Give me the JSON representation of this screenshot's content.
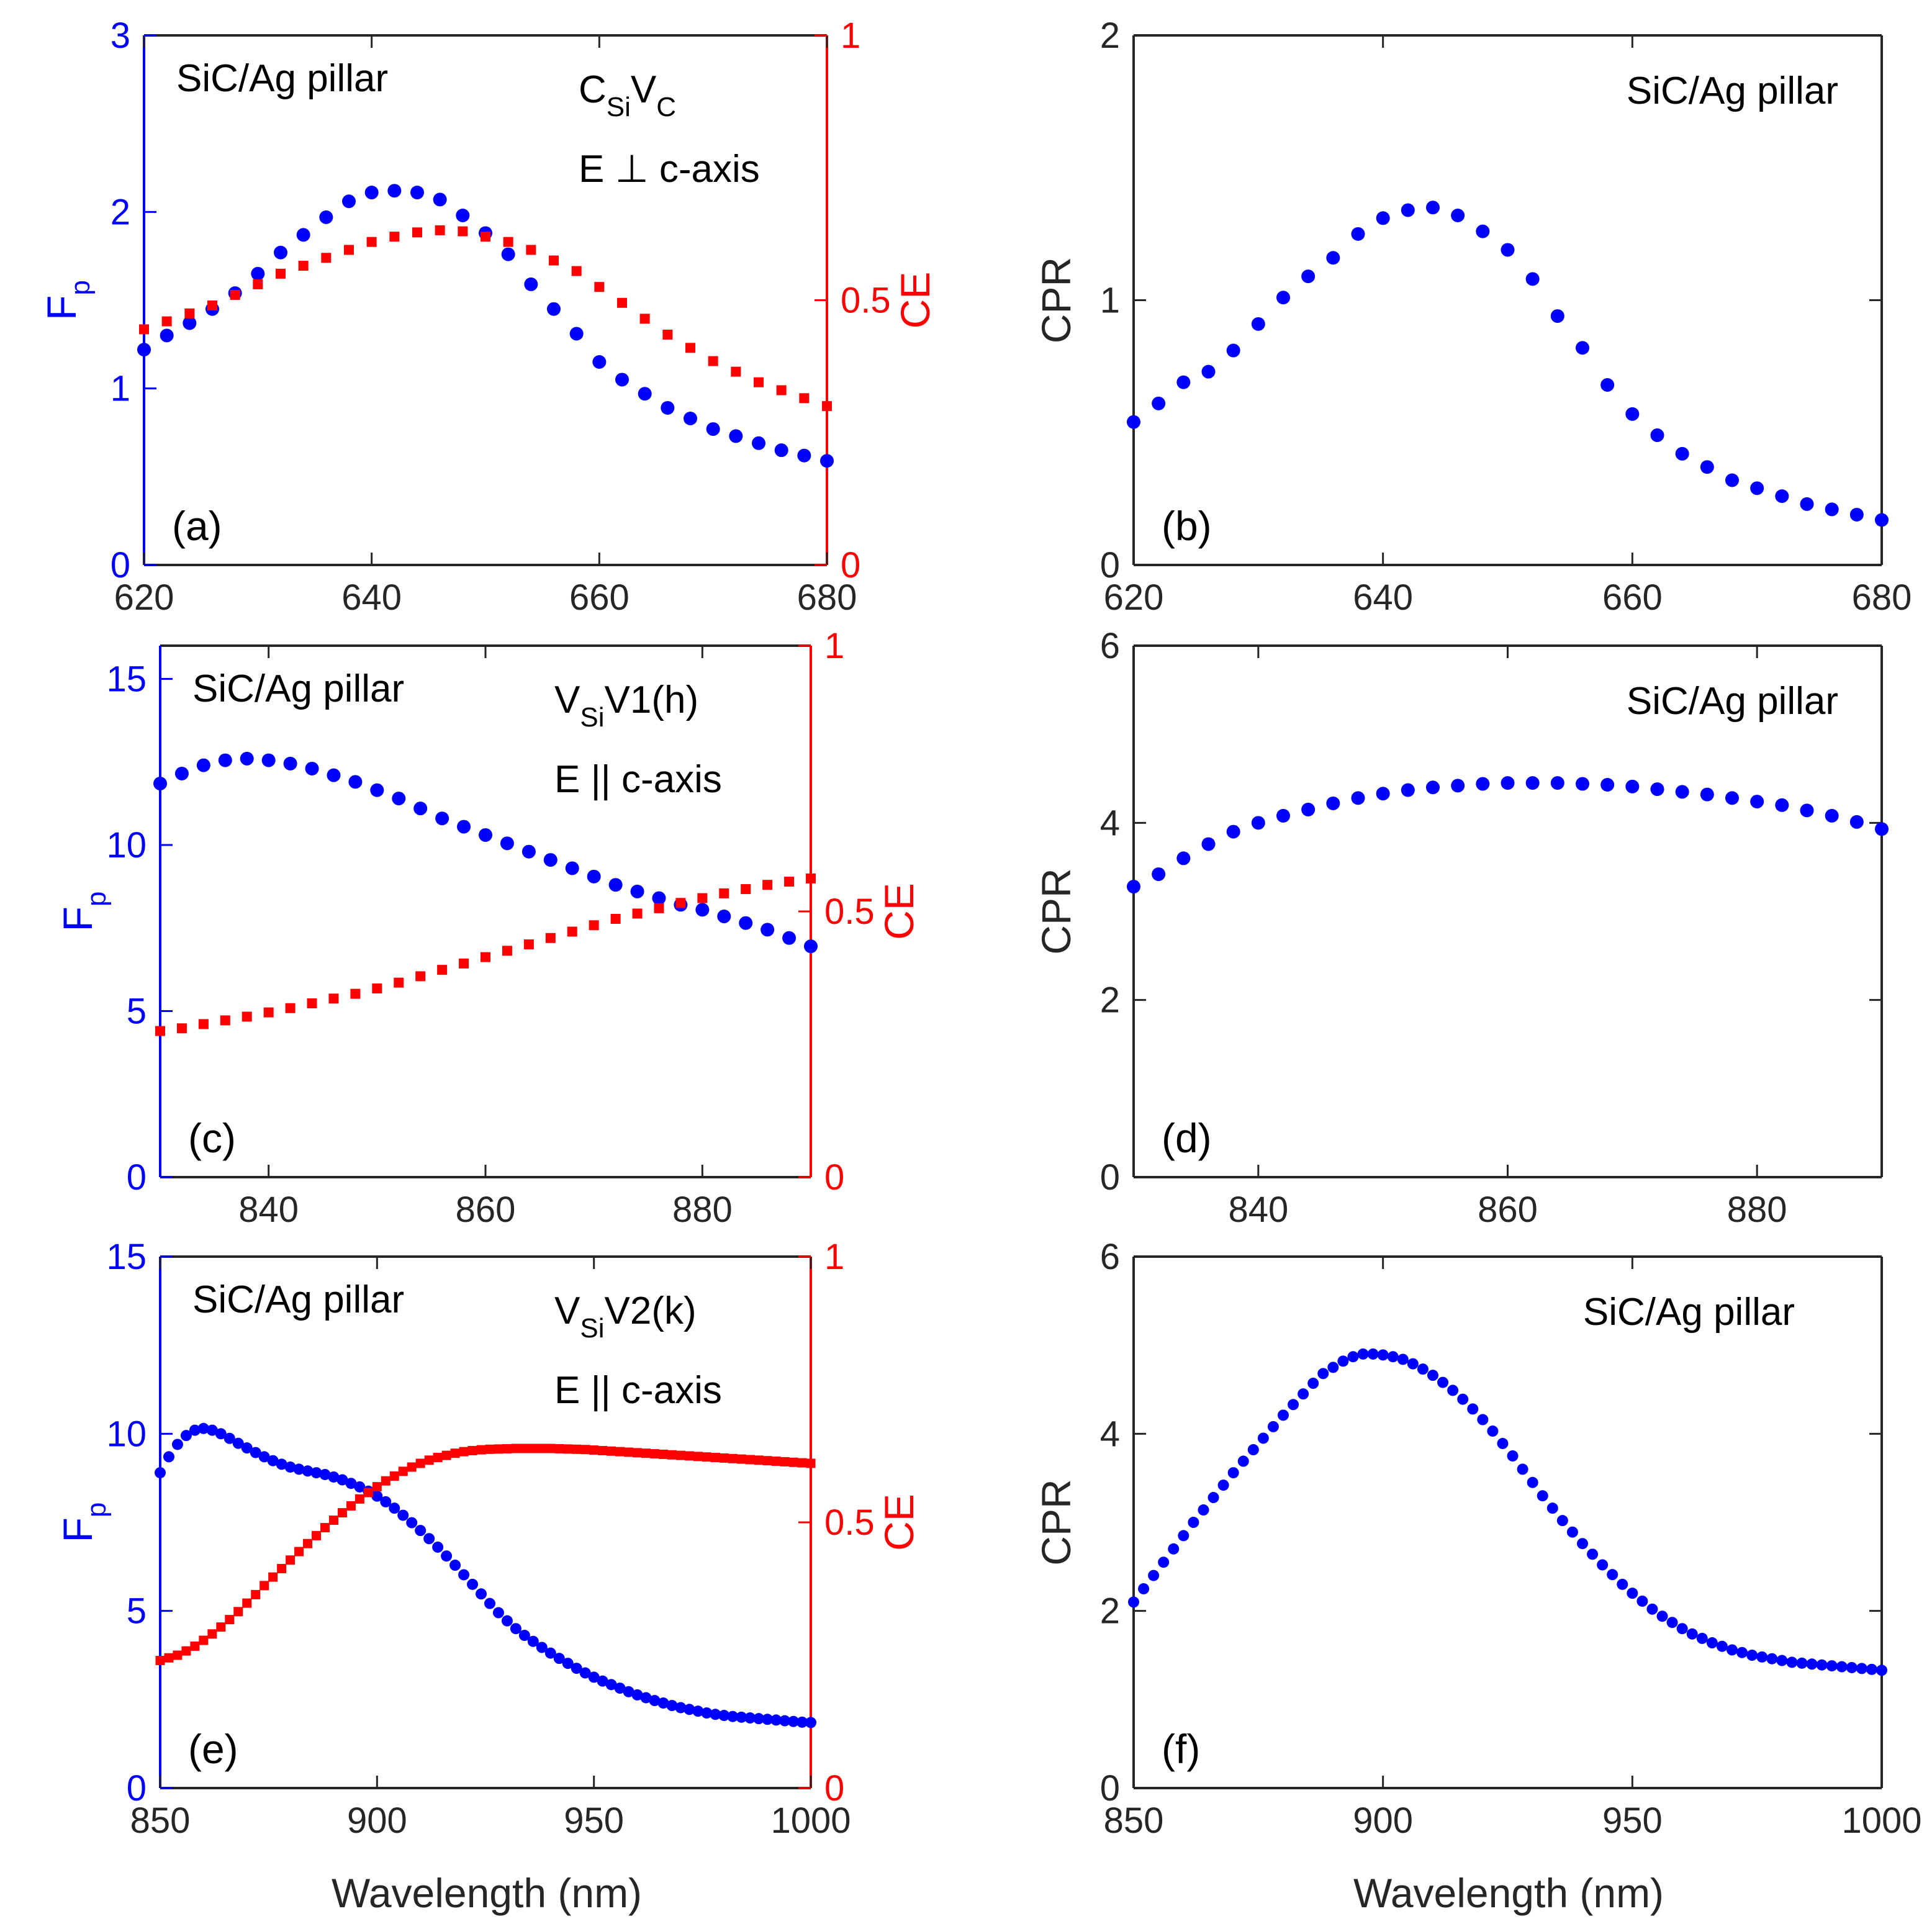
{
  "figure": {
    "xlabel": "Wavelength (nm)",
    "colors": {
      "fp": "#0000FF",
      "ce": "#FF0000",
      "cpr": "#0000FF",
      "axis": "#262626",
      "text": "#000000"
    },
    "shared_labels": {
      "fp": "F",
      "fp_sub": "p",
      "ce": "CE",
      "cpr": "CPR",
      "structure": "SiC/Ag pillar"
    }
  },
  "chart_data": [
    {
      "id": "a",
      "type": "scatter",
      "panel_label": "(a)",
      "xlim": [
        620,
        680
      ],
      "xticks": [
        620,
        640,
        660,
        680
      ],
      "ylim_left": [
        0,
        3
      ],
      "yticks_left": [
        0,
        1,
        2,
        3
      ],
      "ylim_right": [
        0,
        1
      ],
      "yticks_right": [
        0,
        0.5,
        1
      ],
      "ylabel_left": "Fp",
      "ylabel_right": "CE",
      "legend_text": "SiC/Ag pillar",
      "defect": {
        "main1": "C",
        "sub1": "Si",
        "main2": "V",
        "sub2": "C"
      },
      "polarization": "E ⊥ c-axis",
      "series": [
        {
          "name": "Fp",
          "axis": "left",
          "marker": "circle",
          "x": [
            620,
            622,
            624,
            626,
            628,
            630,
            632,
            634,
            636,
            638,
            640,
            642,
            644,
            646,
            648,
            650,
            652,
            654,
            656,
            658,
            660,
            662,
            664,
            666,
            668,
            670,
            672,
            674,
            676,
            678,
            680
          ],
          "y": [
            1.22,
            1.3,
            1.37,
            1.45,
            1.54,
            1.65,
            1.77,
            1.87,
            1.97,
            2.06,
            2.11,
            2.12,
            2.11,
            2.07,
            1.98,
            1.88,
            1.76,
            1.59,
            1.45,
            1.31,
            1.15,
            1.05,
            0.97,
            0.89,
            0.83,
            0.77,
            0.73,
            0.69,
            0.65,
            0.62,
            0.59
          ]
        },
        {
          "name": "CE",
          "axis": "right",
          "marker": "square",
          "x": [
            620,
            622,
            624,
            626,
            628,
            630,
            632,
            634,
            636,
            638,
            640,
            642,
            644,
            646,
            648,
            650,
            652,
            654,
            656,
            658,
            660,
            662,
            664,
            666,
            668,
            670,
            672,
            674,
            676,
            678,
            680
          ],
          "y": [
            0.445,
            0.46,
            0.475,
            0.49,
            0.51,
            0.53,
            0.55,
            0.565,
            0.58,
            0.595,
            0.61,
            0.62,
            0.628,
            0.632,
            0.63,
            0.62,
            0.61,
            0.595,
            0.575,
            0.555,
            0.525,
            0.495,
            0.465,
            0.435,
            0.41,
            0.385,
            0.365,
            0.345,
            0.33,
            0.315,
            0.3
          ]
        }
      ]
    },
    {
      "id": "b",
      "type": "scatter",
      "panel_label": "(b)",
      "xlim": [
        620,
        680
      ],
      "xticks": [
        620,
        640,
        660,
        680
      ],
      "ylim": [
        0,
        2
      ],
      "yticks": [
        0,
        1,
        2
      ],
      "ylabel": "CPR",
      "legend_text": "SiC/Ag pillar",
      "series": [
        {
          "name": "CPR",
          "marker": "circle",
          "x": [
            620,
            622,
            624,
            626,
            628,
            630,
            632,
            634,
            636,
            638,
            640,
            642,
            644,
            646,
            648,
            650,
            652,
            654,
            656,
            658,
            660,
            662,
            664,
            666,
            668,
            670,
            672,
            674,
            676,
            678,
            680
          ],
          "y": [
            0.54,
            0.61,
            0.69,
            0.73,
            0.81,
            0.91,
            1.01,
            1.09,
            1.16,
            1.25,
            1.31,
            1.34,
            1.35,
            1.32,
            1.26,
            1.19,
            1.08,
            0.94,
            0.82,
            0.68,
            0.57,
            0.49,
            0.42,
            0.37,
            0.32,
            0.29,
            0.26,
            0.23,
            0.21,
            0.19,
            0.17
          ]
        }
      ]
    },
    {
      "id": "c",
      "type": "scatter",
      "panel_label": "(c)",
      "xlim": [
        830,
        890
      ],
      "xticks": [
        840,
        860,
        880
      ],
      "ylim_left": [
        0,
        16
      ],
      "yticks_left": [
        0,
        5,
        10,
        15
      ],
      "ylim_right": [
        0,
        1
      ],
      "yticks_right": [
        0,
        0.5,
        1
      ],
      "ylabel_left": "Fp",
      "ylabel_right": "CE",
      "legend_text": "SiC/Ag pillar",
      "defect": {
        "main1": "V",
        "sub1": "Si",
        "main2": "V1(h)",
        "sub2": ""
      },
      "polarization": "E || c-axis",
      "series": [
        {
          "name": "Fp",
          "axis": "left",
          "marker": "circle",
          "x": [
            830,
            832,
            834,
            836,
            838,
            840,
            842,
            844,
            846,
            848,
            850,
            852,
            854,
            856,
            858,
            860,
            862,
            864,
            866,
            868,
            870,
            872,
            874,
            876,
            878,
            880,
            882,
            884,
            886,
            888,
            890
          ],
          "y": [
            11.85,
            12.15,
            12.4,
            12.55,
            12.6,
            12.55,
            12.45,
            12.3,
            12.1,
            11.9,
            11.65,
            11.4,
            11.1,
            10.8,
            10.55,
            10.3,
            10.05,
            9.8,
            9.55,
            9.3,
            9.05,
            8.8,
            8.6,
            8.4,
            8.2,
            8.05,
            7.85,
            7.65,
            7.45,
            7.2,
            6.95
          ]
        },
        {
          "name": "CE",
          "axis": "right",
          "marker": "square",
          "x": [
            830,
            832,
            834,
            836,
            838,
            840,
            842,
            844,
            846,
            848,
            850,
            852,
            854,
            856,
            858,
            860,
            862,
            864,
            866,
            868,
            870,
            872,
            874,
            876,
            878,
            880,
            882,
            884,
            886,
            888,
            890
          ],
          "y": [
            0.275,
            0.28,
            0.288,
            0.295,
            0.302,
            0.31,
            0.318,
            0.327,
            0.336,
            0.345,
            0.355,
            0.366,
            0.378,
            0.39,
            0.402,
            0.414,
            0.426,
            0.438,
            0.45,
            0.462,
            0.474,
            0.486,
            0.496,
            0.506,
            0.516,
            0.525,
            0.534,
            0.542,
            0.55,
            0.556,
            0.562
          ]
        }
      ]
    },
    {
      "id": "d",
      "type": "scatter",
      "panel_label": "(d)",
      "xlim": [
        830,
        890
      ],
      "xticks": [
        840,
        860,
        880
      ],
      "ylim": [
        0,
        6
      ],
      "yticks": [
        0,
        2,
        4,
        6
      ],
      "ylabel": "CPR",
      "legend_text": "SiC/Ag pillar",
      "series": [
        {
          "name": "CPR",
          "marker": "circle",
          "x": [
            830,
            832,
            834,
            836,
            838,
            840,
            842,
            844,
            846,
            848,
            850,
            852,
            854,
            856,
            858,
            860,
            862,
            864,
            866,
            868,
            870,
            872,
            874,
            876,
            878,
            880,
            882,
            884,
            886,
            888,
            890
          ],
          "y": [
            3.28,
            3.42,
            3.6,
            3.76,
            3.9,
            4.0,
            4.08,
            4.15,
            4.22,
            4.28,
            4.33,
            4.37,
            4.4,
            4.42,
            4.44,
            4.45,
            4.45,
            4.45,
            4.44,
            4.43,
            4.41,
            4.38,
            4.35,
            4.32,
            4.28,
            4.24,
            4.2,
            4.14,
            4.08,
            4.01,
            3.93
          ]
        }
      ]
    },
    {
      "id": "e",
      "type": "scatter",
      "panel_label": "(e)",
      "xlim": [
        850,
        1000
      ],
      "xticks": [
        850,
        900,
        950,
        1000
      ],
      "ylim_left": [
        0,
        15
      ],
      "yticks_left": [
        0,
        5,
        10,
        15
      ],
      "ylim_right": [
        0,
        1
      ],
      "yticks_right": [
        0,
        0.5,
        1
      ],
      "ylabel_left": "Fp",
      "ylabel_right": "CE",
      "legend_text": "SiC/Ag pillar",
      "defect": {
        "main1": "V",
        "sub1": "Si",
        "main2": "V2(k)",
        "sub2": ""
      },
      "polarization": "E || c-axis",
      "series": [
        {
          "name": "Fp",
          "axis": "left",
          "marker": "circle",
          "x_start": 850,
          "x_step": 2,
          "y": [
            8.9,
            9.35,
            9.7,
            9.95,
            10.1,
            10.15,
            10.1,
            10.0,
            9.87,
            9.73,
            9.6,
            9.47,
            9.35,
            9.24,
            9.14,
            9.06,
            9.0,
            8.95,
            8.9,
            8.85,
            8.78,
            8.7,
            8.6,
            8.5,
            8.38,
            8.24,
            8.08,
            7.9,
            7.7,
            7.49,
            7.27,
            7.04,
            6.8,
            6.55,
            6.29,
            6.02,
            5.75,
            5.48,
            5.21,
            4.95,
            4.72,
            4.5,
            4.31,
            4.14,
            3.97,
            3.81,
            3.66,
            3.52,
            3.38,
            3.25,
            3.13,
            3.02,
            2.92,
            2.82,
            2.72,
            2.63,
            2.55,
            2.47,
            2.4,
            2.33,
            2.27,
            2.22,
            2.17,
            2.12,
            2.08,
            2.05,
            2.02,
            2.0,
            1.98,
            1.96,
            1.94,
            1.92,
            1.9,
            1.88,
            1.86,
            1.85
          ]
        },
        {
          "name": "CE",
          "axis": "right",
          "marker": "square",
          "x_start": 850,
          "x_step": 2,
          "y": [
            0.24,
            0.245,
            0.25,
            0.258,
            0.267,
            0.278,
            0.29,
            0.303,
            0.317,
            0.332,
            0.348,
            0.364,
            0.381,
            0.397,
            0.413,
            0.429,
            0.445,
            0.46,
            0.475,
            0.49,
            0.504,
            0.518,
            0.531,
            0.544,
            0.556,
            0.567,
            0.578,
            0.587,
            0.596,
            0.604,
            0.611,
            0.617,
            0.622,
            0.626,
            0.63,
            0.633,
            0.635,
            0.6365,
            0.6375,
            0.638,
            0.6385,
            0.639,
            0.639,
            0.639,
            0.639,
            0.639,
            0.6385,
            0.638,
            0.6375,
            0.637,
            0.636,
            0.635,
            0.634,
            0.633,
            0.632,
            0.631,
            0.63,
            0.629,
            0.628,
            0.627,
            0.626,
            0.625,
            0.624,
            0.623,
            0.622,
            0.621,
            0.62,
            0.619,
            0.618,
            0.617,
            0.616,
            0.615,
            0.614,
            0.613,
            0.612,
            0.611
          ]
        }
      ]
    },
    {
      "id": "f",
      "type": "scatter",
      "panel_label": "(f)",
      "xlim": [
        850,
        1000
      ],
      "xticks": [
        850,
        900,
        950,
        1000
      ],
      "ylim": [
        0,
        6
      ],
      "yticks": [
        0,
        2,
        4,
        6
      ],
      "ylabel": "CPR",
      "legend_text": "SiC/Ag pillar",
      "series": [
        {
          "name": "CPR",
          "marker": "circle",
          "x_start": 850,
          "x_step": 2,
          "y": [
            2.1,
            2.25,
            2.4,
            2.55,
            2.7,
            2.85,
            3.0,
            3.14,
            3.28,
            3.42,
            3.56,
            3.69,
            3.82,
            3.95,
            4.08,
            4.21,
            4.33,
            4.45,
            4.57,
            4.68,
            4.75,
            4.82,
            4.87,
            4.9,
            4.9,
            4.89,
            4.87,
            4.84,
            4.79,
            4.73,
            4.66,
            4.58,
            4.49,
            4.39,
            4.28,
            4.16,
            4.03,
            3.89,
            3.75,
            3.6,
            3.45,
            3.3,
            3.16,
            3.02,
            2.89,
            2.76,
            2.64,
            2.52,
            2.41,
            2.3,
            2.2,
            2.11,
            2.02,
            1.94,
            1.87,
            1.8,
            1.74,
            1.69,
            1.64,
            1.6,
            1.56,
            1.53,
            1.5,
            1.48,
            1.46,
            1.44,
            1.42,
            1.41,
            1.4,
            1.39,
            1.38,
            1.37,
            1.36,
            1.35,
            1.34,
            1.33
          ]
        }
      ]
    }
  ]
}
